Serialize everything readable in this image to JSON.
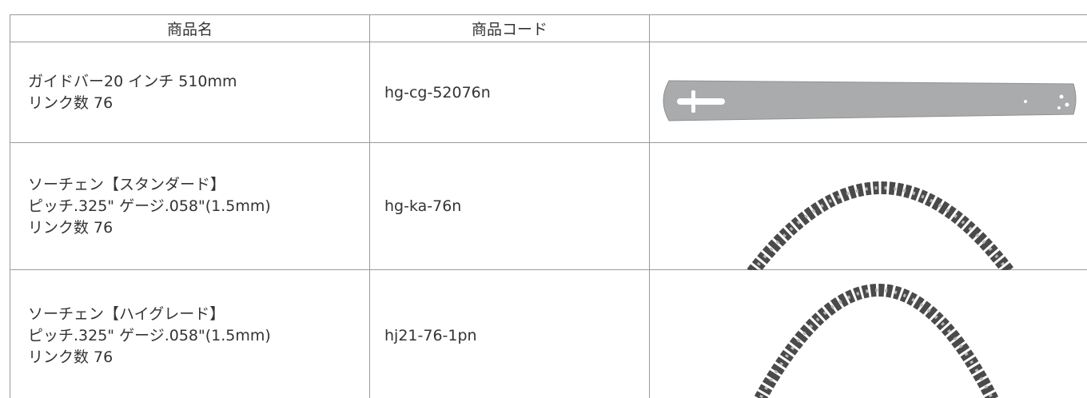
{
  "table": {
    "header": [
      "商品名",
      "商品コード"
    ],
    "rows": [
      {
        "name": [
          "ガイドバー20 インチ 510mm",
          "リンク数 76"
        ],
        "code": "hg-cg-52076n"
      },
      {
        "name": [
          "ソーチェン【スタンダード】",
          "ピッチ.325\" ゲージ.058\"(1.5mm)",
          "リンク数 76"
        ],
        "code": "hg-ka-76n"
      },
      {
        "name": [
          "ソーチェン【ハイグレード】",
          "ピッチ.325\" ゲージ.058\"(1.5mm)",
          "リンク数 76"
        ],
        "code": "hj21-76-1pn"
      }
    ]
  }
}
